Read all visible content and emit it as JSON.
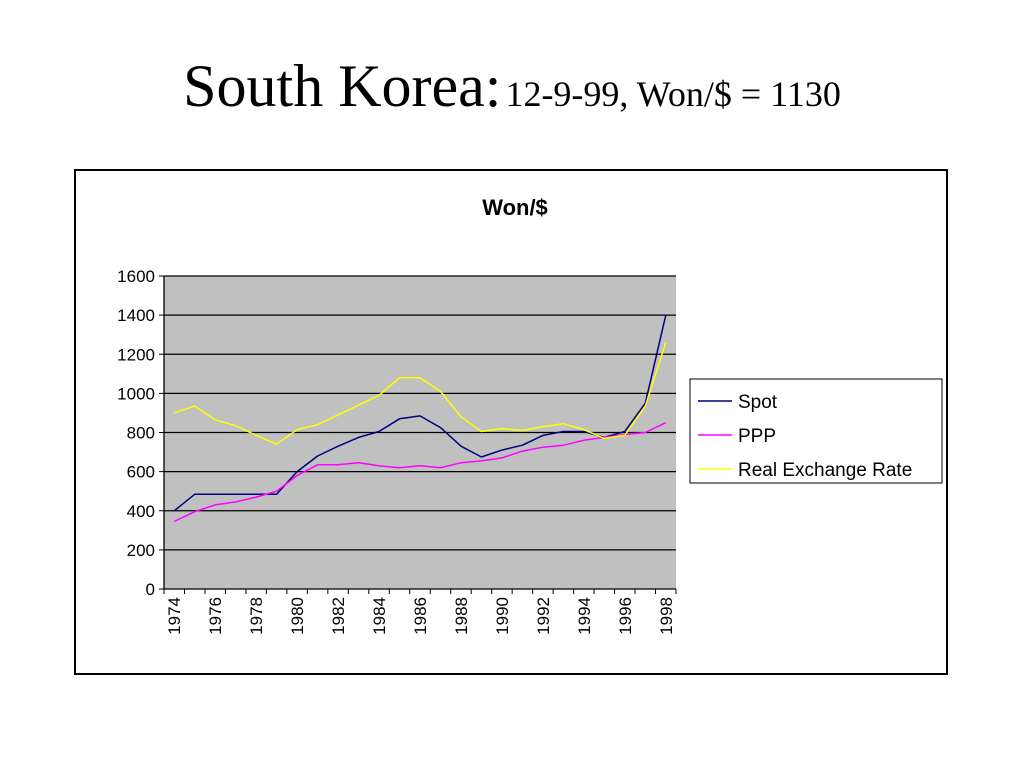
{
  "slide": {
    "title_main": "South Korea:",
    "title_sub": "12-9-99, Won/$ = 1130"
  },
  "chart_data": {
    "type": "line",
    "title": "Won/$",
    "xlabel": "",
    "ylabel": "",
    "ylim": [
      0,
      1600
    ],
    "yticks": [
      0,
      200,
      400,
      600,
      800,
      1000,
      1200,
      1400,
      1600
    ],
    "x": [
      1974,
      1975,
      1976,
      1977,
      1978,
      1979,
      1980,
      1981,
      1982,
      1983,
      1984,
      1985,
      1986,
      1987,
      1988,
      1989,
      1990,
      1991,
      1992,
      1993,
      1994,
      1995,
      1996,
      1997,
      1998
    ],
    "xtick_labels": [
      "1974",
      "1976",
      "1978",
      "1980",
      "1982",
      "1984",
      "1986",
      "1988",
      "1990",
      "1992",
      "1994",
      "1996",
      "1998"
    ],
    "grid": true,
    "plot_background": "#c0c0c0",
    "legend_position": "right",
    "series": [
      {
        "name": "Spot",
        "color": "#000080",
        "values": [
          400,
          484,
          484,
          484,
          484,
          484,
          600,
          680,
          730,
          775,
          805,
          870,
          885,
          825,
          730,
          675,
          710,
          735,
          785,
          805,
          805,
          775,
          805,
          950,
          1400
        ]
      },
      {
        "name": "PPP",
        "color": "#ff00ff",
        "values": [
          345,
          395,
          430,
          445,
          470,
          500,
          580,
          635,
          635,
          645,
          630,
          620,
          630,
          620,
          645,
          655,
          670,
          705,
          725,
          735,
          760,
          775,
          790,
          800,
          850
        ]
      },
      {
        "name": "Real Exchange Rate",
        "color": "#ffff00",
        "values": [
          900,
          935,
          865,
          835,
          785,
          740,
          815,
          840,
          890,
          940,
          990,
          1080,
          1080,
          1010,
          880,
          805,
          820,
          810,
          830,
          845,
          815,
          770,
          785,
          935,
          1260
        ]
      }
    ]
  }
}
